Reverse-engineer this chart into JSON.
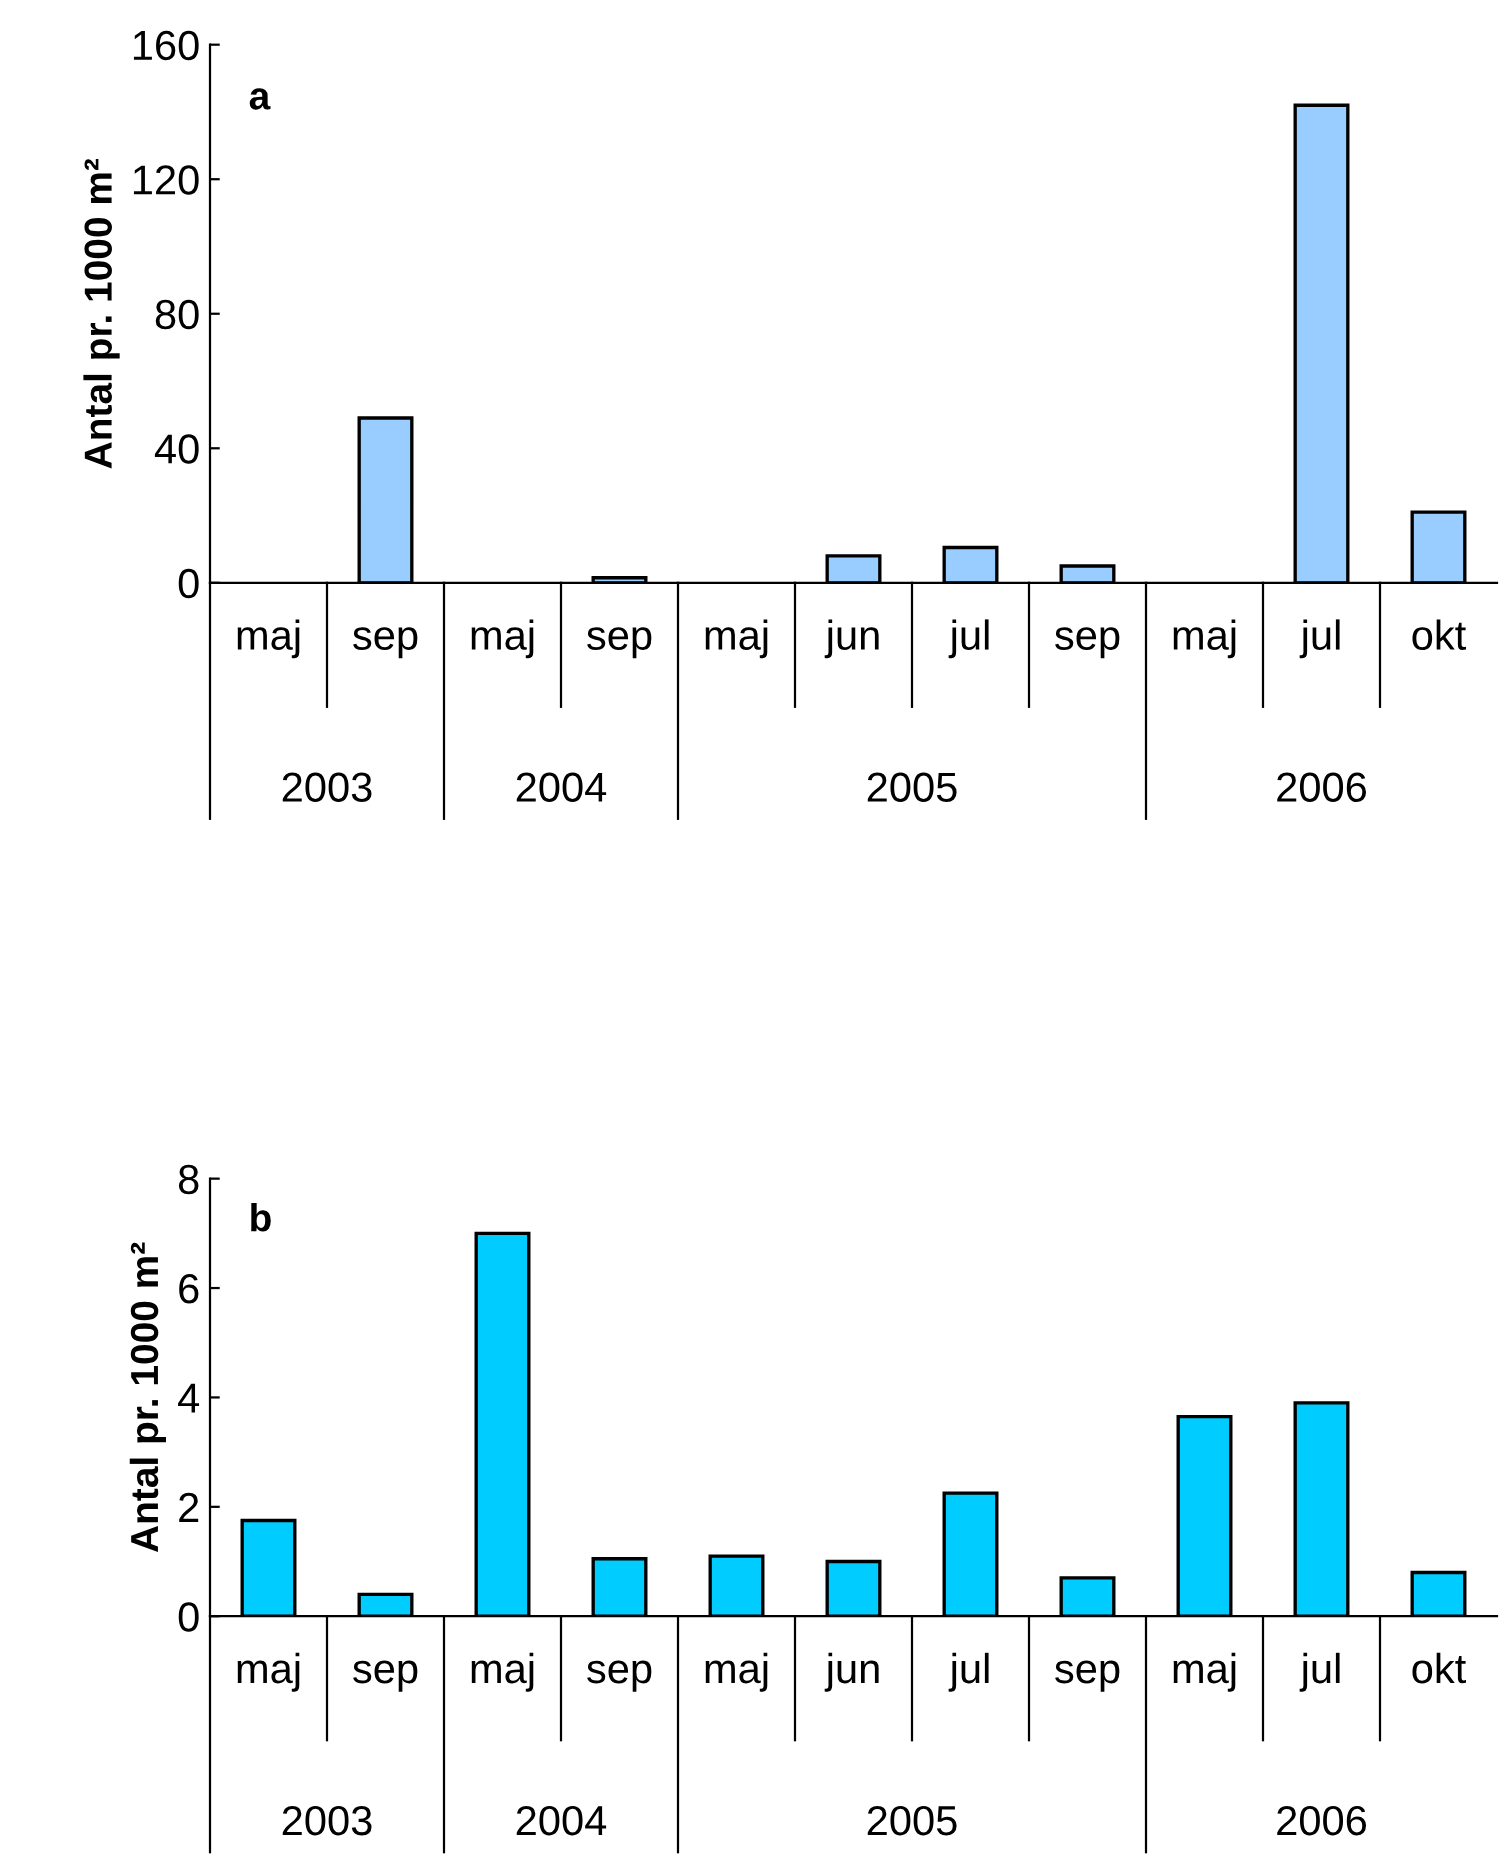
{
  "chart_data": [
    {
      "type": "bar",
      "ylabel": "Antal pr. 1000 m²",
      "categories": [
        "maj",
        "sep",
        "maj",
        "sep",
        "maj",
        "jun",
        "jul",
        "sep",
        "maj",
        "jul",
        "okt"
      ],
      "values": [
        0,
        49,
        0,
        1.5,
        0,
        8,
        10.5,
        5,
        0,
        142,
        21
      ],
      "color": "#99ccff",
      "ylim": [
        0,
        160
      ],
      "yticks": [
        0,
        40,
        80,
        120,
        160
      ],
      "grid": false,
      "annotations": [
        "a",
        "2003",
        "2004",
        "2005",
        "2006"
      ]
    },
    {
      "type": "bar",
      "ylabel": "Antal pr. 1000 m²",
      "categories": [
        "maj",
        "sep",
        "maj",
        "sep",
        "maj",
        "jun",
        "jul",
        "sep",
        "maj",
        "jul",
        "okt"
      ],
      "values": [
        1.75,
        0.4,
        7.0,
        1.05,
        1.1,
        1.0,
        2.25,
        0.7,
        3.65,
        3.9,
        0.8
      ],
      "color": "#00ccff",
      "ylim": [
        0,
        8
      ],
      "yticks": [
        0,
        2,
        4,
        6,
        8
      ],
      "grid": false,
      "annotations": [
        "b",
        "2003",
        "2004",
        "2005",
        "2006"
      ]
    }
  ]
}
